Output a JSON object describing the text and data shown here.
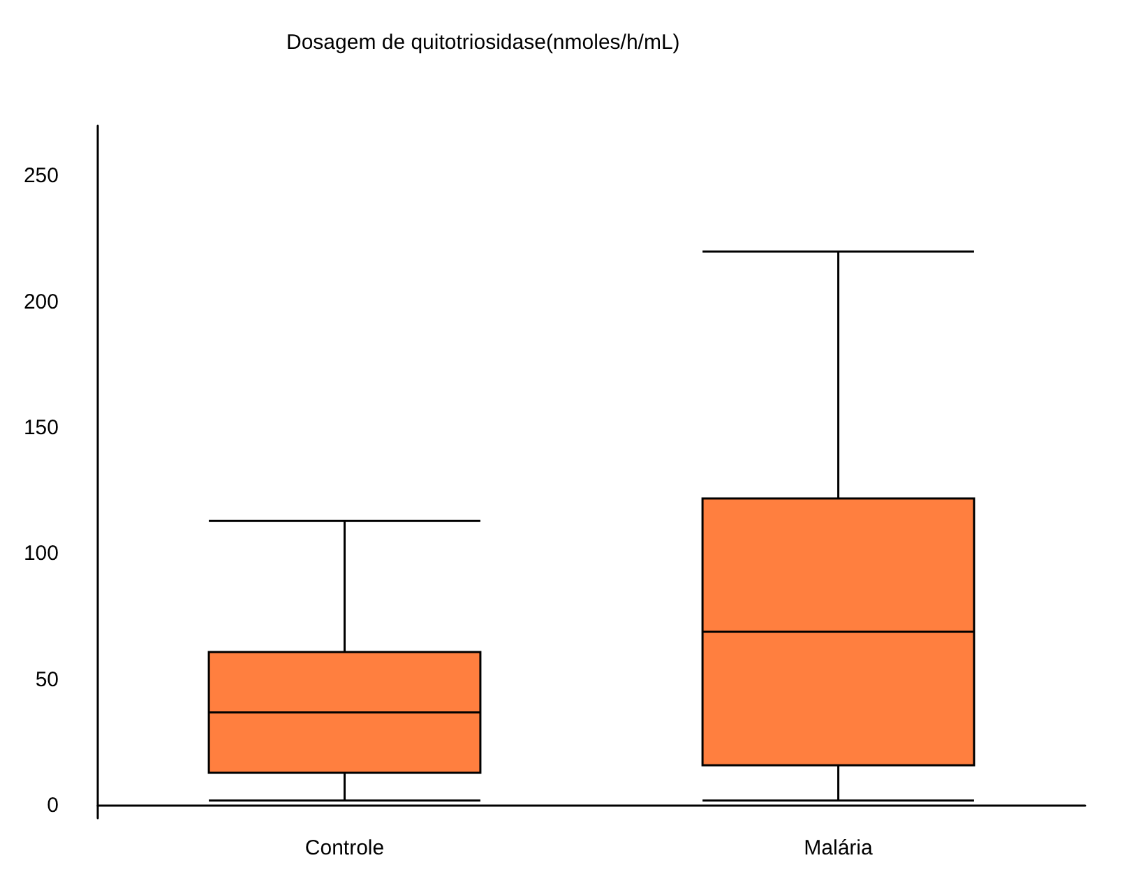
{
  "chart_data": {
    "type": "box",
    "title": "Dosagem de quitotriosidase(nmoles/h/mL)",
    "categories": [
      "Controle",
      "Malária"
    ],
    "boxes": [
      {
        "low": 2,
        "q1": 13,
        "median": 37,
        "q3": 61,
        "high": 113
      },
      {
        "low": 2,
        "q1": 16,
        "median": 69,
        "q3": 122,
        "high": 220
      }
    ],
    "color": "#ff7f3f",
    "ylim": [
      -5,
      270
    ],
    "yticks": [
      0,
      50,
      100,
      150,
      200,
      250
    ],
    "grid": false
  }
}
